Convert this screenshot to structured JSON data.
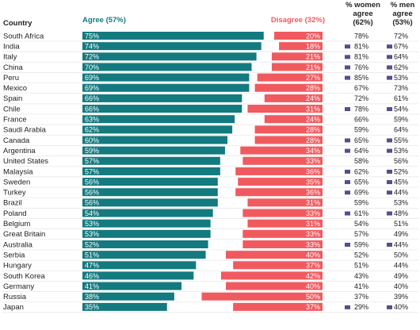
{
  "chart_data": {
    "type": "bar",
    "orientation": "horizontal-diverging",
    "headers": {
      "country": "Country",
      "agree": "Agree (57%)",
      "disagree": "Disagree (32%)",
      "women": [
        "% women",
        "agree",
        "(62%)"
      ],
      "men": [
        "% men",
        "agree",
        "(53%)"
      ]
    },
    "colors": {
      "agree": "#137a7f",
      "disagree": "#f05a5f",
      "marker": "#5b4b8a"
    },
    "rows": [
      {
        "country": "South Africa",
        "agree": 75,
        "disagree": 20,
        "women": 78,
        "men": 72,
        "marker": "none"
      },
      {
        "country": "India",
        "agree": 74,
        "disagree": 18,
        "women": 81,
        "men": 67,
        "marker": "both"
      },
      {
        "country": "Italy",
        "agree": 72,
        "disagree": 21,
        "women": 81,
        "men": 64,
        "marker": "both"
      },
      {
        "country": "China",
        "agree": 70,
        "disagree": 21,
        "women": 76,
        "men": 62,
        "marker": "both"
      },
      {
        "country": "Peru",
        "agree": 69,
        "disagree": 27,
        "women": 85,
        "men": 53,
        "marker": "both"
      },
      {
        "country": "Mexico",
        "agree": 69,
        "disagree": 28,
        "women": 67,
        "men": 73,
        "marker": "none"
      },
      {
        "country": "Spain",
        "agree": 66,
        "disagree": 24,
        "women": 72,
        "men": 61,
        "marker": "none"
      },
      {
        "country": "Chile",
        "agree": 66,
        "disagree": 31,
        "women": 78,
        "men": 54,
        "marker": "both"
      },
      {
        "country": "France",
        "agree": 63,
        "disagree": 24,
        "women": 66,
        "men": 59,
        "marker": "none"
      },
      {
        "country": "Saudi Arabia",
        "agree": 62,
        "disagree": 28,
        "women": 59,
        "men": 64,
        "marker": "none"
      },
      {
        "country": "Canada",
        "agree": 60,
        "disagree": 28,
        "women": 65,
        "men": 55,
        "marker": "both"
      },
      {
        "country": "Argentina",
        "agree": 59,
        "disagree": 34,
        "women": 64,
        "men": 53,
        "marker": "both"
      },
      {
        "country": "United States",
        "agree": 57,
        "disagree": 33,
        "women": 58,
        "men": 56,
        "marker": "none"
      },
      {
        "country": "Malaysia",
        "agree": 57,
        "disagree": 36,
        "women": 62,
        "men": 52,
        "marker": "both"
      },
      {
        "country": "Sweden",
        "agree": 56,
        "disagree": 35,
        "women": 65,
        "men": 45,
        "marker": "both"
      },
      {
        "country": "Turkey",
        "agree": 56,
        "disagree": 36,
        "women": 69,
        "men": 44,
        "marker": "both"
      },
      {
        "country": "Brazil",
        "agree": 56,
        "disagree": 31,
        "women": 59,
        "men": 53,
        "marker": "none"
      },
      {
        "country": "Poland",
        "agree": 54,
        "disagree": 33,
        "women": 61,
        "men": 48,
        "marker": "both"
      },
      {
        "country": "Belgium",
        "agree": 53,
        "disagree": 31,
        "women": 54,
        "men": 51,
        "marker": "none"
      },
      {
        "country": "Great Britain",
        "agree": 53,
        "disagree": 33,
        "women": 57,
        "men": 49,
        "marker": "none"
      },
      {
        "country": "Australia",
        "agree": 52,
        "disagree": 33,
        "women": 59,
        "men": 44,
        "marker": "both"
      },
      {
        "country": "Serbia",
        "agree": 51,
        "disagree": 40,
        "women": 52,
        "men": 50,
        "marker": "none"
      },
      {
        "country": "Hungary",
        "agree": 47,
        "disagree": 37,
        "women": 51,
        "men": 44,
        "marker": "none"
      },
      {
        "country": "South Korea",
        "agree": 46,
        "disagree": 42,
        "women": 43,
        "men": 49,
        "marker": "none"
      },
      {
        "country": "Germany",
        "agree": 41,
        "disagree": 40,
        "women": 41,
        "men": 40,
        "marker": "none"
      },
      {
        "country": "Russia",
        "agree": 38,
        "disagree": 50,
        "women": 37,
        "men": 39,
        "marker": "none"
      },
      {
        "country": "Japan",
        "agree": 35,
        "disagree": 37,
        "women": 29,
        "men": 40,
        "marker": "both"
      }
    ]
  }
}
